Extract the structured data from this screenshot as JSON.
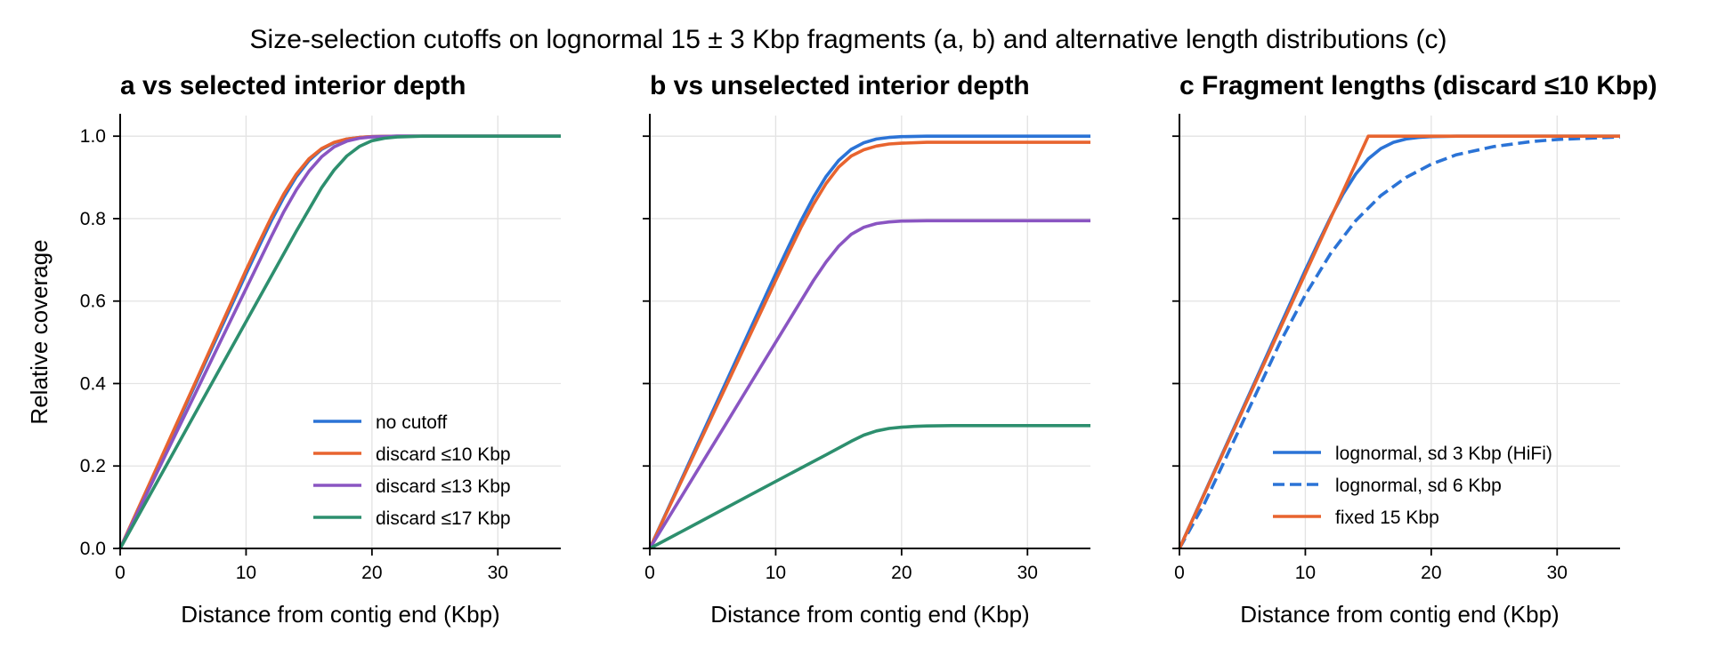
{
  "suptitle": "Size-selection cutoffs on lognormal 15 ± 3 Kbp fragments (a, b) and alternative length distributions (c)",
  "colors": {
    "blue": "#2b73d6",
    "orange": "#e8642f",
    "purple": "#8a55c2",
    "green": "#2d8f6e",
    "grid": "#e3e3e3",
    "axis": "#000000"
  },
  "chart_data": [
    {
      "type": "line",
      "panel": "a",
      "title": "a  vs selected interior depth",
      "xlabel": "Distance from contig end (Kbp)",
      "ylabel": "Relative coverage",
      "xlim": [
        0,
        35
      ],
      "ylim": [
        0,
        1.05
      ],
      "xticks": [
        0,
        10,
        20,
        30
      ],
      "yticks": [
        0.0,
        0.2,
        0.4,
        0.6,
        0.8,
        1.0
      ],
      "ytick_labels": [
        "0.0",
        "0.2",
        "0.4",
        "0.6",
        "0.8",
        "1.0"
      ],
      "grid": true,
      "legend_position": "lower-right",
      "series": [
        {
          "name": "no cutoff",
          "color": "blue",
          "dash": "solid",
          "x": [
            0,
            2,
            4,
            6,
            8,
            10,
            11,
            12,
            13,
            14,
            15,
            16,
            17,
            18,
            19,
            20,
            22,
            25,
            30,
            35
          ],
          "y": [
            0,
            0.133,
            0.267,
            0.4,
            0.533,
            0.666,
            0.731,
            0.794,
            0.852,
            0.902,
            0.941,
            0.968,
            0.984,
            0.993,
            0.997,
            0.999,
            1.0,
            1.0,
            1.0,
            1.0
          ]
        },
        {
          "name": "discard ≤10 Kbp",
          "color": "orange",
          "dash": "solid",
          "x": [
            0,
            2,
            4,
            6,
            8,
            10,
            11,
            12,
            13,
            14,
            15,
            16,
            17,
            18,
            19,
            20,
            22,
            25,
            30,
            35
          ],
          "y": [
            0,
            0.135,
            0.27,
            0.405,
            0.54,
            0.675,
            0.74,
            0.803,
            0.86,
            0.908,
            0.945,
            0.97,
            0.985,
            0.993,
            0.997,
            0.999,
            1.0,
            1.0,
            1.0,
            1.0
          ]
        },
        {
          "name": "discard ≤13 Kbp",
          "color": "purple",
          "dash": "solid",
          "x": [
            0,
            2,
            4,
            6,
            8,
            10,
            12,
            13,
            14,
            15,
            16,
            17,
            18,
            19,
            20,
            22,
            25,
            30,
            35
          ],
          "y": [
            0,
            0.126,
            0.252,
            0.378,
            0.504,
            0.63,
            0.756,
            0.817,
            0.87,
            0.915,
            0.95,
            0.974,
            0.988,
            0.995,
            0.998,
            1.0,
            1.0,
            1.0,
            1.0
          ]
        },
        {
          "name": "discard ≤17 Kbp",
          "color": "green",
          "dash": "solid",
          "x": [
            0,
            4,
            8,
            12,
            14,
            16,
            17,
            18,
            19,
            20,
            21,
            22,
            24,
            26,
            30,
            35
          ],
          "y": [
            0,
            0.22,
            0.44,
            0.66,
            0.77,
            0.875,
            0.918,
            0.952,
            0.975,
            0.989,
            0.995,
            0.998,
            1.0,
            1.0,
            1.0,
            1.0
          ]
        }
      ]
    },
    {
      "type": "line",
      "panel": "b",
      "title": "b  vs unselected interior depth",
      "xlabel": "Distance from contig end (Kbp)",
      "ylabel": "",
      "xlim": [
        0,
        35
      ],
      "ylim": [
        0,
        1.05
      ],
      "xticks": [
        0,
        10,
        20,
        30
      ],
      "yticks": [
        0.0,
        0.2,
        0.4,
        0.6,
        0.8,
        1.0
      ],
      "grid": true,
      "series": [
        {
          "name": "no cutoff",
          "color": "blue",
          "dash": "solid",
          "x": [
            0,
            2,
            4,
            6,
            8,
            10,
            11,
            12,
            13,
            14,
            15,
            16,
            17,
            18,
            19,
            20,
            22,
            25,
            30,
            35
          ],
          "y": [
            0,
            0.133,
            0.267,
            0.4,
            0.533,
            0.666,
            0.731,
            0.794,
            0.852,
            0.902,
            0.941,
            0.968,
            0.984,
            0.993,
            0.997,
            0.999,
            1.0,
            1.0,
            1.0,
            1.0
          ]
        },
        {
          "name": "discard ≤10 Kbp",
          "color": "orange",
          "dash": "solid",
          "x": [
            0,
            2,
            4,
            6,
            8,
            10,
            11,
            12,
            13,
            14,
            15,
            16,
            17,
            18,
            19,
            20,
            22,
            25,
            30,
            35
          ],
          "y": [
            0,
            0.13,
            0.26,
            0.39,
            0.52,
            0.65,
            0.715,
            0.778,
            0.835,
            0.885,
            0.925,
            0.952,
            0.967,
            0.976,
            0.981,
            0.983,
            0.985,
            0.985,
            0.985,
            0.985
          ]
        },
        {
          "name": "discard ≤13 Kbp",
          "color": "purple",
          "dash": "solid",
          "x": [
            0,
            2,
            4,
            6,
            8,
            10,
            12,
            13,
            14,
            15,
            16,
            17,
            18,
            19,
            20,
            22,
            25,
            30,
            35
          ],
          "y": [
            0,
            0.1,
            0.2,
            0.3,
            0.4,
            0.5,
            0.6,
            0.65,
            0.695,
            0.733,
            0.762,
            0.779,
            0.788,
            0.792,
            0.794,
            0.795,
            0.795,
            0.795,
            0.795
          ]
        },
        {
          "name": "discard ≤17 Kbp",
          "color": "green",
          "dash": "solid",
          "x": [
            0,
            4,
            8,
            12,
            14,
            16,
            17,
            18,
            19,
            20,
            21,
            22,
            24,
            26,
            30,
            35
          ],
          "y": [
            0,
            0.065,
            0.13,
            0.195,
            0.227,
            0.26,
            0.275,
            0.285,
            0.291,
            0.294,
            0.296,
            0.297,
            0.298,
            0.298,
            0.298,
            0.298
          ]
        }
      ]
    },
    {
      "type": "line",
      "panel": "c",
      "title": "c  Fragment lengths (discard ≤10 Kbp)",
      "xlabel": "Distance from contig end (Kbp)",
      "ylabel": "",
      "xlim": [
        0,
        35
      ],
      "ylim": [
        0,
        1.05
      ],
      "xticks": [
        0,
        10,
        20,
        30
      ],
      "yticks": [
        0.0,
        0.2,
        0.4,
        0.6,
        0.8,
        1.0
      ],
      "grid": true,
      "legend_position": "lower-right",
      "series": [
        {
          "name": "lognormal, sd 3 Kbp (HiFi)",
          "color": "blue",
          "dash": "solid",
          "x": [
            0,
            2,
            4,
            6,
            8,
            10,
            11,
            12,
            13,
            14,
            15,
            16,
            17,
            18,
            19,
            20,
            22,
            25,
            30,
            35
          ],
          "y": [
            0,
            0.135,
            0.27,
            0.405,
            0.54,
            0.675,
            0.74,
            0.803,
            0.86,
            0.908,
            0.945,
            0.97,
            0.985,
            0.993,
            0.997,
            0.999,
            1.0,
            1.0,
            1.0,
            1.0
          ]
        },
        {
          "name": "lognormal, sd 6 Kbp",
          "color": "blue",
          "dash": "dashed",
          "x": [
            0,
            2,
            4,
            6,
            8,
            10,
            12,
            14,
            16,
            18,
            20,
            22,
            25,
            28,
            30,
            35
          ],
          "y": [
            0,
            0.11,
            0.24,
            0.37,
            0.5,
            0.615,
            0.715,
            0.795,
            0.856,
            0.9,
            0.932,
            0.955,
            0.975,
            0.987,
            0.992,
            0.998
          ]
        },
        {
          "name": "fixed 15 Kbp",
          "color": "orange",
          "dash": "solid",
          "x": [
            0,
            15,
            20,
            25,
            30,
            35
          ],
          "y": [
            0,
            1.0,
            1.0,
            1.0,
            1.0,
            1.0
          ]
        }
      ]
    }
  ]
}
